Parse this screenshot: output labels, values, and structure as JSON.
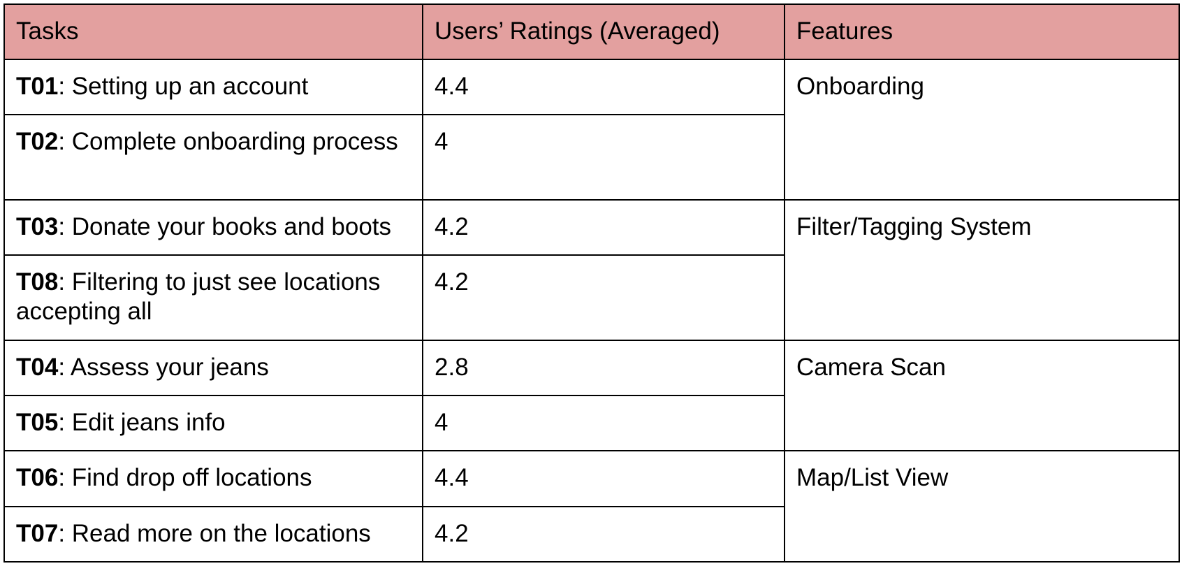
{
  "table": {
    "headers": {
      "tasks": "Tasks",
      "ratings": "Users’ Ratings (Averaged)",
      "features": "Features"
    },
    "rows": [
      {
        "id": "T01",
        "sep": ":",
        "task": " Setting up an account",
        "rating": "4.4"
      },
      {
        "id": "T02",
        "sep": ":",
        "task": " Complete onboarding process",
        "rating": "4"
      },
      {
        "id": "T03",
        "sep": ":",
        "task": " Donate your books and boots",
        "rating": "4.2"
      },
      {
        "id": "T08",
        "sep": ":",
        "task": " Filtering to just see locations accepting all",
        "rating": "4.2"
      },
      {
        "id": "T04",
        "sep": ":",
        "task": " Assess your jeans",
        "rating": "2.8"
      },
      {
        "id": "T05",
        "sep": ":",
        "task": " Edit jeans info",
        "rating": "4"
      },
      {
        "id": "T06",
        "sep": ":",
        "task": " Find drop off locations",
        "rating": "4.4"
      },
      {
        "id": "T07",
        "sep": ":",
        "task": " Read more on the locations",
        "rating": "4.2"
      }
    ],
    "features": [
      "Onboarding",
      "Filter/Tagging System",
      "Camera Scan",
      "Map/List View"
    ]
  }
}
